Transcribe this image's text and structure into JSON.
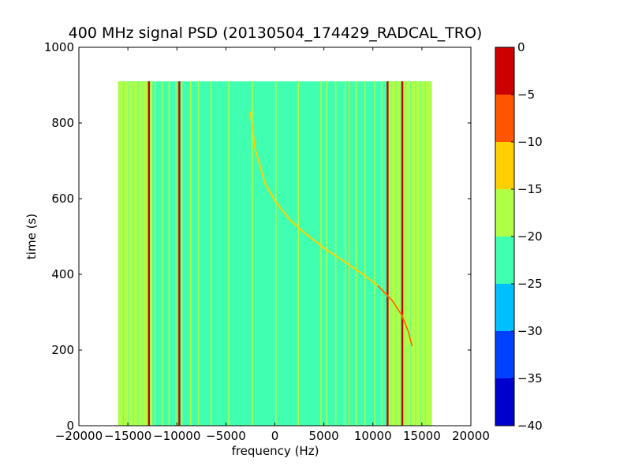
{
  "chart_data": {
    "type": "heatmap",
    "title": "400 MHz signal PSD (20130504_174429_RADCAL_TRO)",
    "xlabel": "frequency (Hz)",
    "ylabel": "time (s)",
    "xlim": [
      -20000,
      20000
    ],
    "ylim": [
      0,
      1000
    ],
    "xticks": [
      -20000,
      -15000,
      -10000,
      -5000,
      0,
      5000,
      10000,
      15000,
      20000
    ],
    "xtick_labels": [
      "−20000",
      "−15000",
      "−10000",
      "−5000",
      "0",
      "5000",
      "10000",
      "15000",
      "20000"
    ],
    "yticks": [
      0,
      200,
      400,
      600,
      800,
      1000
    ],
    "ytick_labels": [
      "0",
      "200",
      "400",
      "600",
      "800",
      "1000"
    ],
    "data_extent": {
      "x": [
        -16000,
        16000
      ],
      "y": [
        0,
        910
      ]
    },
    "background_level": -22.5,
    "band_levels": [
      {
        "x_from": -16000,
        "x_to": -12500,
        "level": -17.5
      },
      {
        "x_from": 11500,
        "x_to": 16000,
        "level": -17.5
      }
    ],
    "vertical_lines": [
      {
        "x": -12850,
        "level": -2.5
      },
      {
        "x": -12600,
        "level": -17.5
      },
      {
        "x": -12200,
        "level": -17.5
      },
      {
        "x": -11500,
        "level": -17.5
      },
      {
        "x": -10800,
        "level": -17.5
      },
      {
        "x": -10100,
        "level": -17.5
      },
      {
        "x": -9750,
        "level": -2.5
      },
      {
        "x": -9500,
        "level": -17.5
      },
      {
        "x": -8600,
        "level": -17.5
      },
      {
        "x": -7800,
        "level": -17.5
      },
      {
        "x": -6500,
        "level": -17.5
      },
      {
        "x": -4700,
        "level": -17.5
      },
      {
        "x": -2300,
        "level": -17.5
      },
      {
        "x": 100,
        "level": -17.5
      },
      {
        "x": 2400,
        "level": -17.5
      },
      {
        "x": 4700,
        "level": -17.5
      },
      {
        "x": 5300,
        "level": -17.5
      },
      {
        "x": 6200,
        "level": -17.5
      },
      {
        "x": 7200,
        "level": -17.5
      },
      {
        "x": 7600,
        "level": -12.5
      },
      {
        "x": 8300,
        "level": -17.5
      },
      {
        "x": 9200,
        "level": -17.5
      },
      {
        "x": 10200,
        "level": -17.5
      },
      {
        "x": 10900,
        "level": -17.5
      },
      {
        "x": 11500,
        "level": -2.5
      },
      {
        "x": 12000,
        "level": -17.5
      },
      {
        "x": 13000,
        "level": -2.5
      }
    ],
    "sweep_curve": {
      "level": -12.5,
      "points": [
        {
          "x": -2500,
          "y": 830
        },
        {
          "x": -2000,
          "y": 730
        },
        {
          "x": -1000,
          "y": 640
        },
        {
          "x": 0,
          "y": 595
        },
        {
          "x": 1500,
          "y": 545
        },
        {
          "x": 3000,
          "y": 510
        },
        {
          "x": 5000,
          "y": 470
        },
        {
          "x": 7000,
          "y": 435
        },
        {
          "x": 9000,
          "y": 400
        },
        {
          "x": 10500,
          "y": 370
        },
        {
          "x": 12000,
          "y": 330
        },
        {
          "x": 13000,
          "y": 290
        },
        {
          "x": 13600,
          "y": 250
        },
        {
          "x": 14000,
          "y": 210
        }
      ]
    },
    "colorbar": {
      "min": -40,
      "max": 0,
      "levels": [
        {
          "from": -40,
          "to": -35,
          "color": "#0000cc"
        },
        {
          "from": -35,
          "to": -30,
          "color": "#0040ff"
        },
        {
          "from": -30,
          "to": -25,
          "color": "#00bfff"
        },
        {
          "from": -25,
          "to": -20,
          "color": "#40ffb0"
        },
        {
          "from": -20,
          "to": -15,
          "color": "#b0ff47"
        },
        {
          "from": -15,
          "to": -10,
          "color": "#ffd000"
        },
        {
          "from": -10,
          "to": -5,
          "color": "#ff5500"
        },
        {
          "from": -5,
          "to": 0,
          "color": "#cc0000"
        }
      ],
      "ticks": [
        0,
        -5,
        -10,
        -15,
        -20,
        -25,
        -30,
        -35,
        -40
      ],
      "tick_labels": [
        "0",
        "−5",
        "−10",
        "−15",
        "−20",
        "−25",
        "−30",
        "−35",
        "−40"
      ]
    }
  }
}
